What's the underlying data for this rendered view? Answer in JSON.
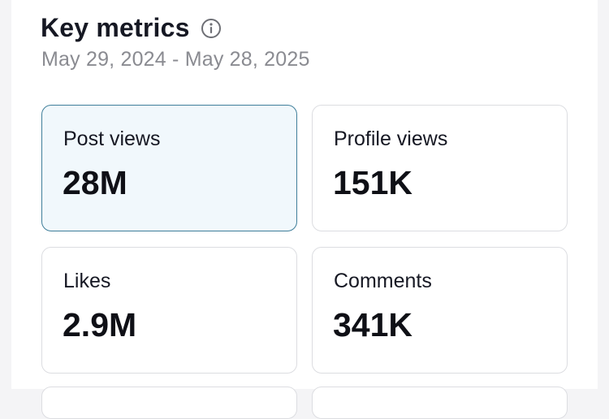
{
  "header": {
    "title": "Key metrics",
    "info_icon": "info-circle-icon",
    "date_range": "May 29, 2024 - May 28, 2025"
  },
  "metrics": [
    {
      "label": "Post views",
      "value": "28M",
      "selected": true
    },
    {
      "label": "Profile views",
      "value": "151K",
      "selected": false
    },
    {
      "label": "Likes",
      "value": "2.9M",
      "selected": false
    },
    {
      "label": "Comments",
      "value": "341K",
      "selected": false
    }
  ],
  "colors": {
    "selected_border": "#3f7e9a",
    "selected_background": "#f1f8fc",
    "card_border": "#dcdde1",
    "muted_text": "#8a8b91"
  }
}
